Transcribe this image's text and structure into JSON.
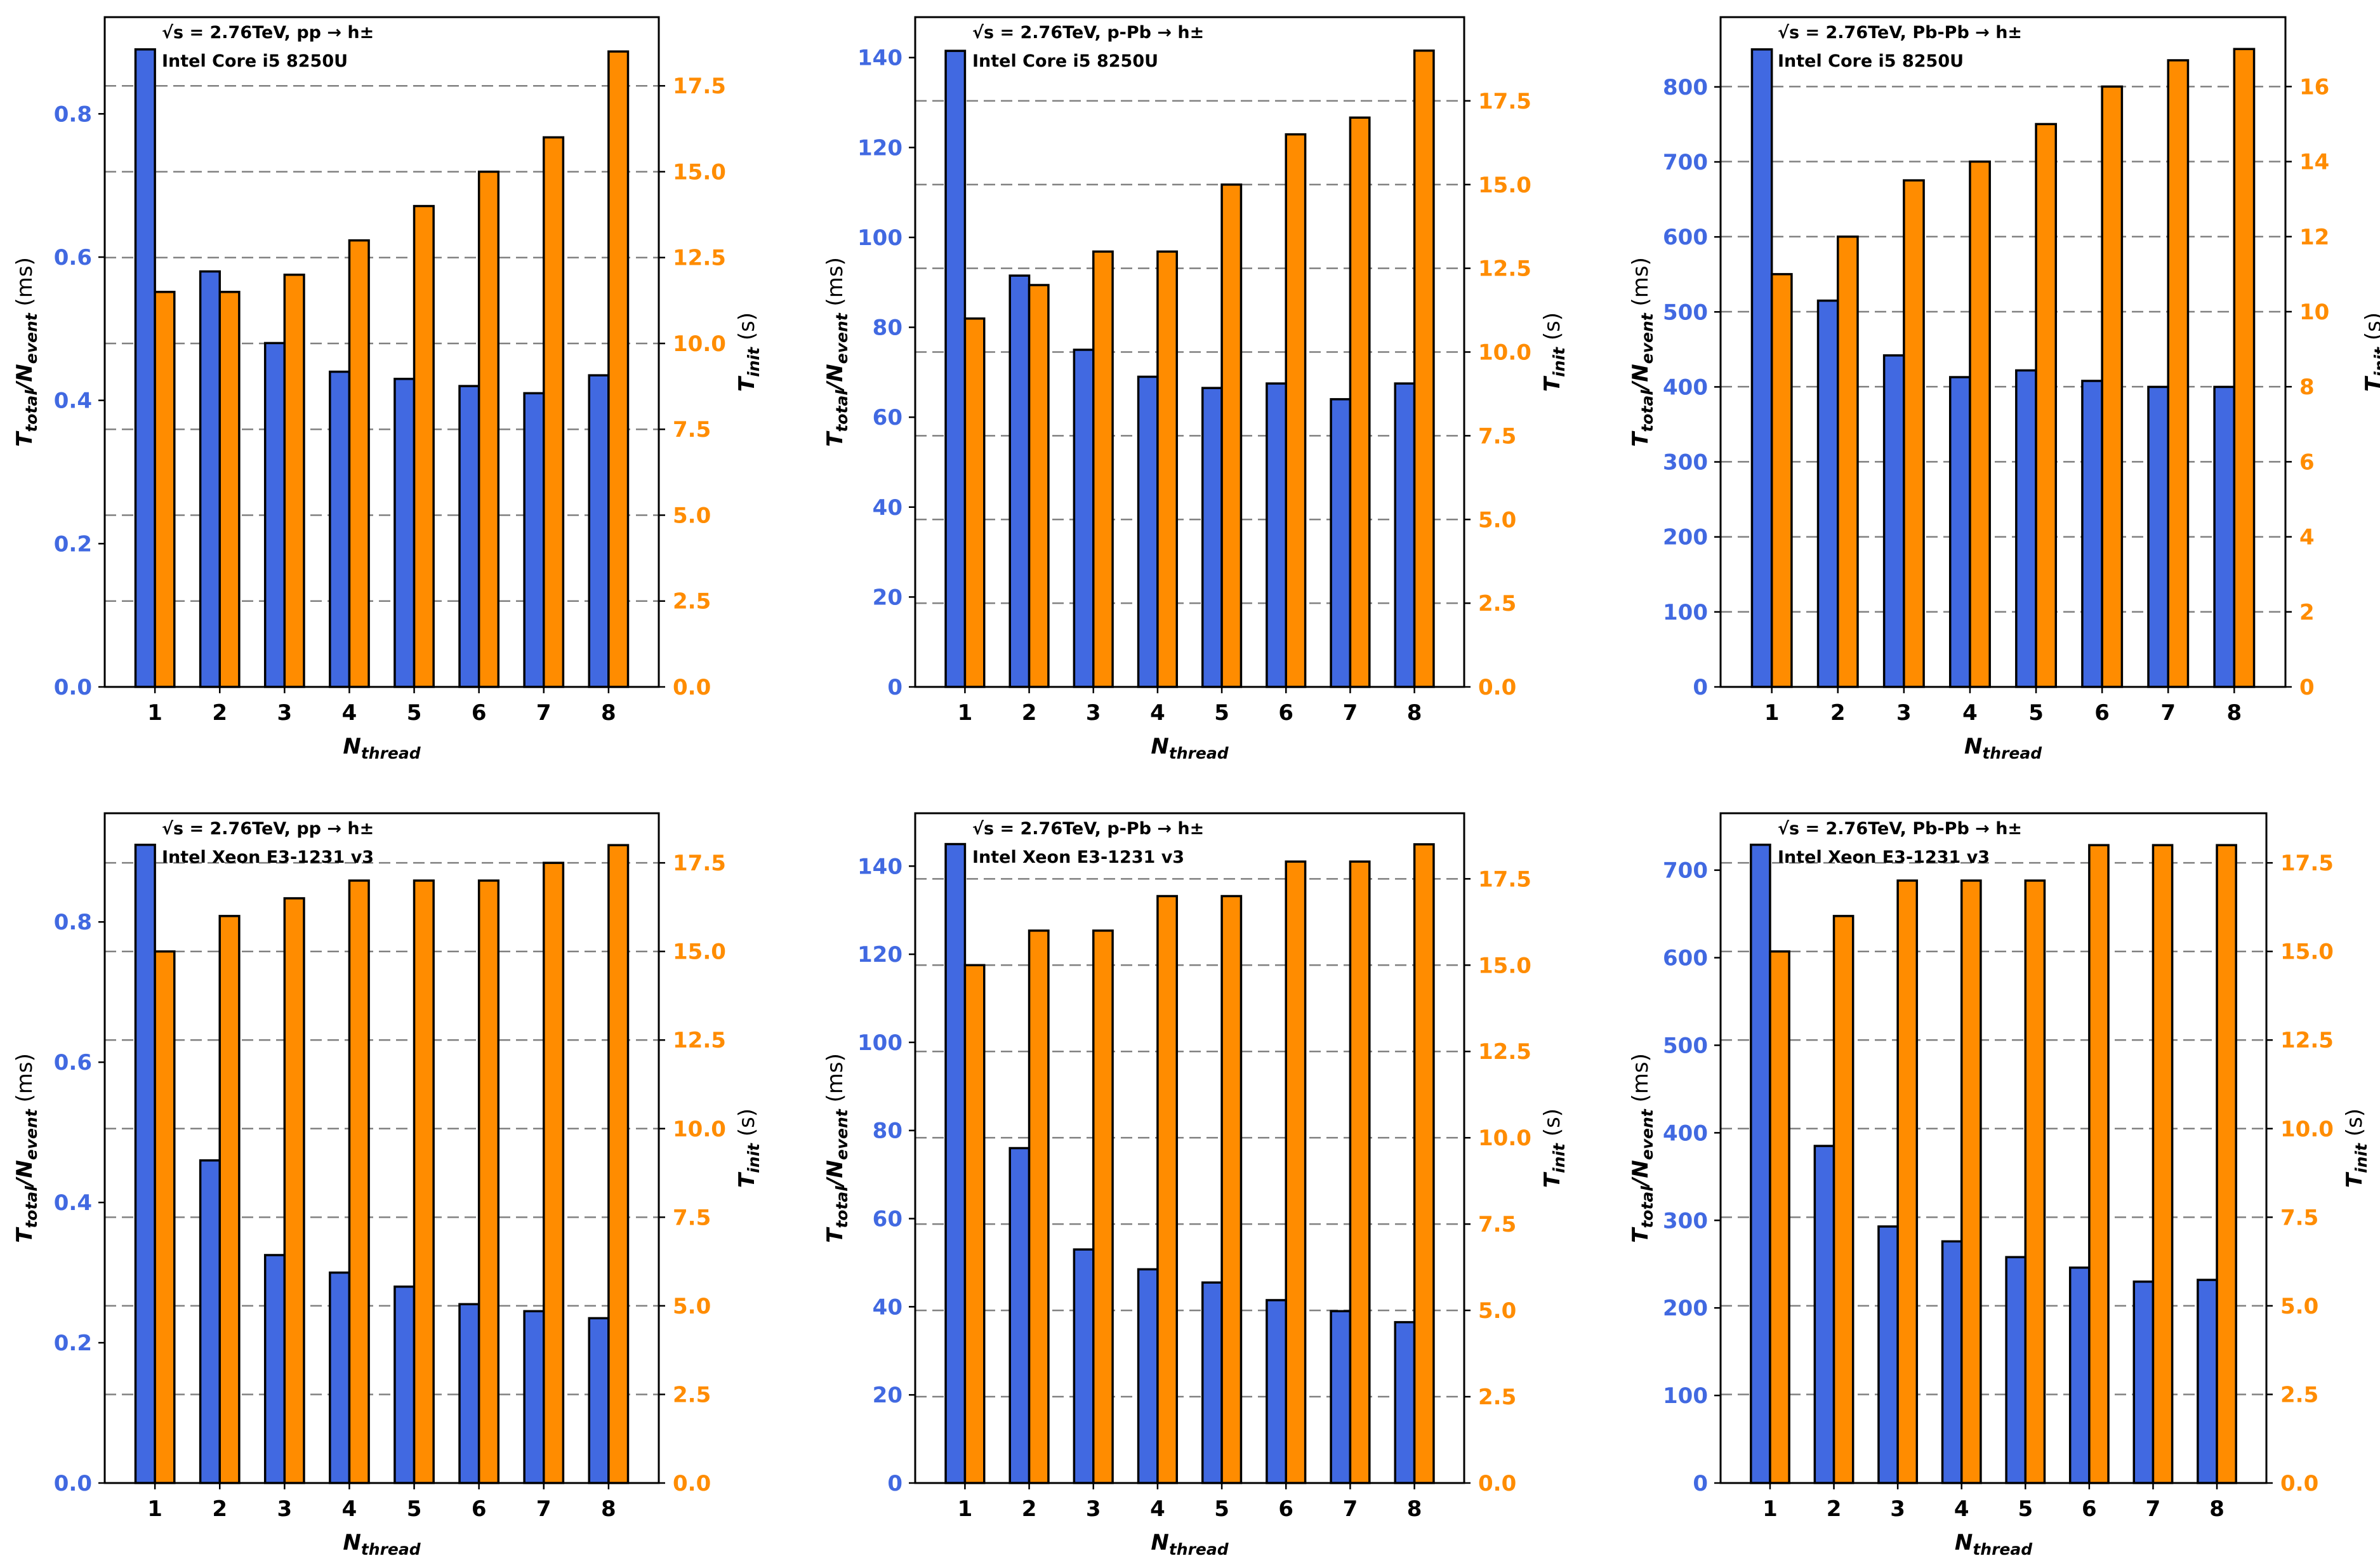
{
  "figure": {
    "subplot_labels": [
      "pp-i5",
      "pPb-i5",
      "PbPb-i5",
      "pp-xeon",
      "pPb-xeon",
      "PbPb-xeon"
    ]
  },
  "colors": {
    "left_series": "#4169E1",
    "right_series": "#FF8C00",
    "left_axis_text": "#4169E1",
    "right_axis_text": "#FF8C00",
    "edge": "#000000",
    "grid": "#808080"
  },
  "chart_data": [
    {
      "type": "bar",
      "title_lines": [
        "√s = 2.76TeV, pp → h±",
        "Intel Core i5 8250U"
      ],
      "xlabel_main": "N",
      "xlabel_sub": "thread",
      "ylabel_left": {
        "main": "T",
        "sub1": "total",
        "mid": "/N",
        "sub2": "event",
        "unit": " (ms)"
      },
      "ylabel_right": {
        "main": "T",
        "sub": "init",
        "unit": " (s)"
      },
      "categories": [
        "1",
        "2",
        "3",
        "4",
        "5",
        "6",
        "7",
        "8"
      ],
      "series": [
        {
          "name": "T_total/N_event (ms)",
          "axis": "left",
          "values": [
            0.89,
            0.58,
            0.48,
            0.44,
            0.43,
            0.42,
            0.41,
            0.435
          ]
        },
        {
          "name": "T_init (s)",
          "axis": "right",
          "values": [
            11.5,
            11.5,
            12.0,
            13.0,
            14.0,
            15.0,
            16.0,
            18.5
          ]
        }
      ],
      "ylim_left": [
        0,
        0.935
      ],
      "ylim_right": [
        0,
        19.5
      ],
      "yticks_left": [
        "0.0",
        "0.2",
        "0.4",
        "0.6",
        "0.8"
      ],
      "yticks_right": [
        "0.0",
        "2.5",
        "5.0",
        "7.5",
        "10.0",
        "12.5",
        "15.0",
        "17.5"
      ],
      "grid": "dashed at right-axis ticks"
    },
    {
      "type": "bar",
      "title_lines": [
        "√s = 2.76TeV, p-Pb → h±",
        "Intel Core i5 8250U"
      ],
      "xlabel_main": "N",
      "xlabel_sub": "thread",
      "ylabel_left": {
        "main": "T",
        "sub1": "total",
        "mid": "/N",
        "sub2": "event",
        "unit": " (ms)"
      },
      "ylabel_right": {
        "main": "T",
        "sub": "init",
        "unit": " (s)"
      },
      "categories": [
        "1",
        "2",
        "3",
        "4",
        "5",
        "6",
        "7",
        "8"
      ],
      "series": [
        {
          "name": "T_total/N_event (ms)",
          "axis": "left",
          "values": [
            141.5,
            91.5,
            75,
            69,
            66.5,
            67.5,
            64,
            67.5
          ]
        },
        {
          "name": "T_init (s)",
          "axis": "right",
          "values": [
            11.0,
            12.0,
            13.0,
            13.0,
            15.0,
            16.5,
            17.0,
            19.0
          ]
        }
      ],
      "ylim_left": [
        0,
        149
      ],
      "ylim_right": [
        0,
        20
      ],
      "yticks_left": [
        "0",
        "20",
        "40",
        "60",
        "80",
        "100",
        "120",
        "140"
      ],
      "yticks_right": [
        "0.0",
        "2.5",
        "5.0",
        "7.5",
        "10.0",
        "12.5",
        "15.0",
        "17.5"
      ],
      "grid": "dashed at right-axis ticks"
    },
    {
      "type": "bar",
      "title_lines": [
        "√s = 2.76TeV, Pb-Pb → h±",
        "Intel Core i5 8250U"
      ],
      "xlabel_main": "N",
      "xlabel_sub": "thread",
      "ylabel_left": {
        "main": "T",
        "sub1": "total",
        "mid": "/N",
        "sub2": "event",
        "unit": " (ms)"
      },
      "ylabel_right": {
        "main": "T",
        "sub": "init",
        "unit": " (s)"
      },
      "categories": [
        "1",
        "2",
        "3",
        "4",
        "5",
        "6",
        "7",
        "8"
      ],
      "series": [
        {
          "name": "T_total/N_event (ms)",
          "axis": "left",
          "values": [
            850,
            515,
            442,
            413,
            422,
            408,
            400,
            400
          ]
        },
        {
          "name": "T_init (s)",
          "axis": "right",
          "values": [
            11.0,
            12.0,
            13.5,
            14.0,
            15.0,
            16.0,
            16.7,
            17.0
          ]
        }
      ],
      "ylim_left": [
        0,
        893
      ],
      "ylim_right": [
        0,
        17.85
      ],
      "yticks_left": [
        "0",
        "100",
        "200",
        "300",
        "400",
        "500",
        "600",
        "700",
        "800"
      ],
      "yticks_right": [
        "0",
        "2",
        "4",
        "6",
        "8",
        "10",
        "12",
        "14",
        "16"
      ],
      "grid": "dashed at right-axis ticks"
    },
    {
      "type": "bar",
      "title_lines": [
        "√s = 2.76TeV, pp → h±",
        "Intel Xeon E3-1231 v3"
      ],
      "xlabel_main": "N",
      "xlabel_sub": "thread",
      "ylabel_left": {
        "main": "T",
        "sub1": "total",
        "mid": "/N",
        "sub2": "event",
        "unit": " (ms)"
      },
      "ylabel_right": {
        "main": "T",
        "sub": "init",
        "unit": " (s)"
      },
      "categories": [
        "1",
        "2",
        "3",
        "4",
        "5",
        "6",
        "7",
        "8"
      ],
      "series": [
        {
          "name": "T_total/N_event (ms)",
          "axis": "left",
          "values": [
            0.91,
            0.46,
            0.325,
            0.3,
            0.28,
            0.255,
            0.245,
            0.235
          ]
        },
        {
          "name": "T_init (s)",
          "axis": "right",
          "values": [
            15.0,
            16.0,
            16.5,
            17.0,
            17.0,
            17.0,
            17.5,
            18.0
          ]
        }
      ],
      "ylim_left": [
        0,
        0.955
      ],
      "ylim_right": [
        0,
        18.9
      ],
      "yticks_left": [
        "0.0",
        "0.2",
        "0.4",
        "0.6",
        "0.8"
      ],
      "yticks_right": [
        "0.0",
        "2.5",
        "5.0",
        "7.5",
        "10.0",
        "12.5",
        "15.0",
        "17.5"
      ],
      "grid": "dashed at right-axis ticks"
    },
    {
      "type": "bar",
      "title_lines": [
        "√s = 2.76TeV, p-Pb → h±",
        "Intel Xeon E3-1231 v3"
      ],
      "xlabel_main": "N",
      "xlabel_sub": "thread",
      "ylabel_left": {
        "main": "T",
        "sub1": "total",
        "mid": "/N",
        "sub2": "event",
        "unit": " (ms)"
      },
      "ylabel_right": {
        "main": "T",
        "sub": "init",
        "unit": " (s)"
      },
      "categories": [
        "1",
        "2",
        "3",
        "4",
        "5",
        "6",
        "7",
        "8"
      ],
      "series": [
        {
          "name": "T_total/N_event (ms)",
          "axis": "left",
          "values": [
            145,
            76,
            53,
            48.5,
            45.5,
            41.5,
            39,
            36.5
          ]
        },
        {
          "name": "T_init (s)",
          "axis": "right",
          "values": [
            15.0,
            16.0,
            16.0,
            17.0,
            17.0,
            18.0,
            18.0,
            18.5
          ]
        }
      ],
      "ylim_left": [
        0,
        152
      ],
      "ylim_right": [
        0,
        19.4
      ],
      "yticks_left": [
        "0",
        "20",
        "40",
        "60",
        "80",
        "100",
        "120",
        "140"
      ],
      "yticks_right": [
        "0.0",
        "2.5",
        "5.0",
        "7.5",
        "10.0",
        "12.5",
        "15.0",
        "17.5"
      ],
      "grid": "dashed at right-axis ticks"
    },
    {
      "type": "bar",
      "title_lines": [
        "√s = 2.76TeV, Pb-Pb → h±",
        "Intel Xeon E3-1231 v3"
      ],
      "xlabel_main": "N",
      "xlabel_sub": "thread",
      "ylabel_left": {
        "main": "T",
        "sub1": "total",
        "mid": "/N",
        "sub2": "event",
        "unit": " (ms)"
      },
      "ylabel_right": {
        "main": "T",
        "sub": "init",
        "unit": " (s)"
      },
      "categories": [
        "1",
        "2",
        "3",
        "4",
        "5",
        "6",
        "7",
        "8"
      ],
      "series": [
        {
          "name": "T_total/N_event (ms)",
          "axis": "left",
          "values": [
            729,
            385,
            293,
            276,
            258,
            246,
            230,
            232
          ]
        },
        {
          "name": "T_init (s)",
          "axis": "right",
          "values": [
            15.0,
            16.0,
            17.0,
            17.0,
            17.0,
            18.0,
            18.0,
            18.0
          ]
        }
      ],
      "ylim_left": [
        0,
        765
      ],
      "ylim_right": [
        0,
        18.9
      ],
      "yticks_left": [
        "0",
        "100",
        "200",
        "300",
        "400",
        "500",
        "600",
        "700"
      ],
      "yticks_right": [
        "0.0",
        "2.5",
        "5.0",
        "7.5",
        "10.0",
        "12.5",
        "15.0",
        "17.5"
      ],
      "grid": "dashed at right-axis ticks"
    }
  ]
}
